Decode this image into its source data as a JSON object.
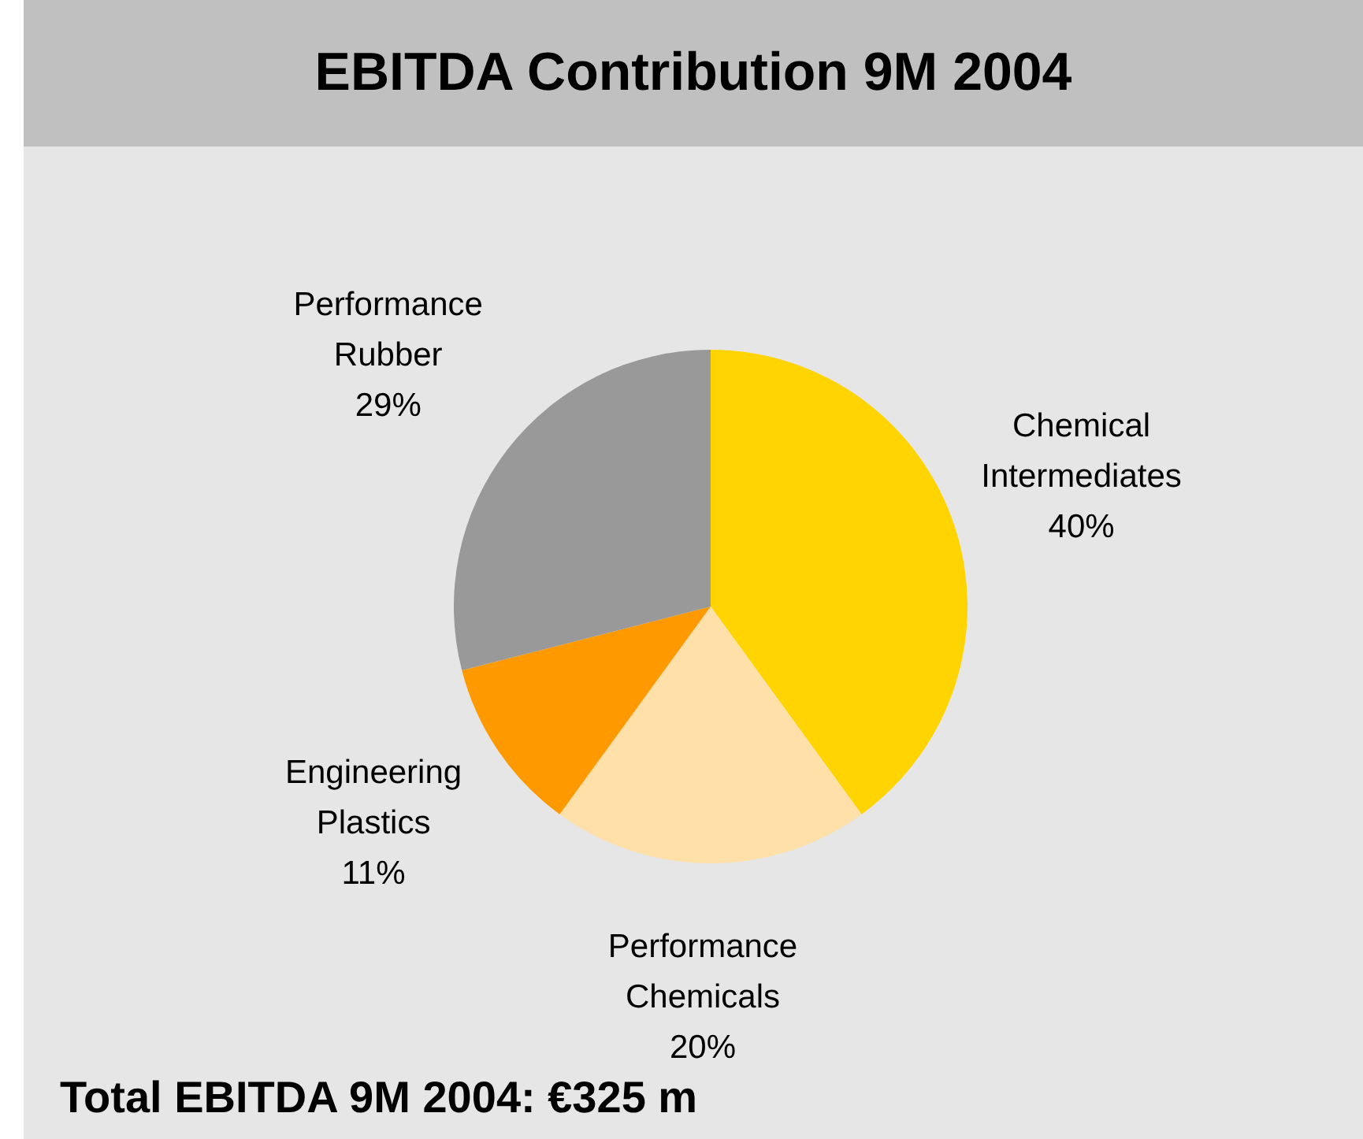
{
  "chart_data": {
    "type": "pie",
    "title": "EBITDA Contribution 9M 2004",
    "categories": [
      "Chemical Intermediates",
      "Performance Chemicals",
      "Engineering Plastics",
      "Performance Rubber"
    ],
    "values": [
      40,
      20,
      11,
      29
    ],
    "colors": [
      "#ffd400",
      "#ffe0a8",
      "#ff9900",
      "#999999"
    ],
    "value_labels": [
      "40%",
      "20%",
      "11%",
      "29%"
    ],
    "annotations": [
      "Total EBITDA 9M 2004: €325 m"
    ]
  }
}
